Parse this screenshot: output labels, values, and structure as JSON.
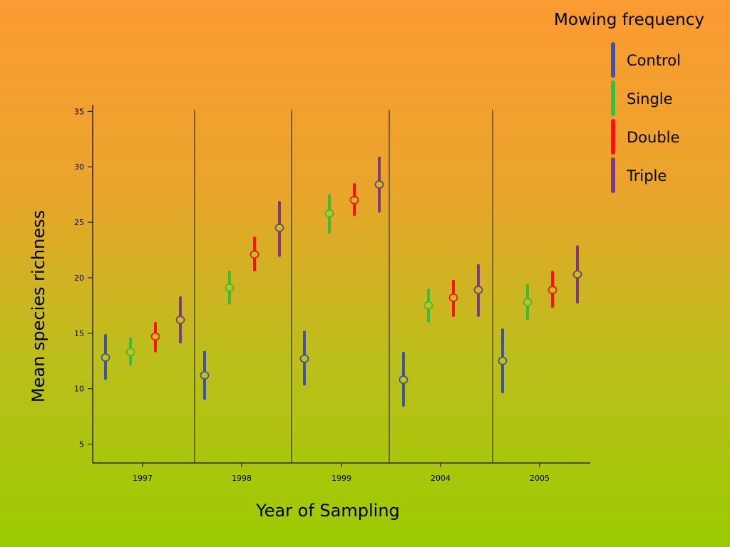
{
  "chart_data": {
    "type": "scatter",
    "subtype": "point-with-error-bars",
    "legend_title": "Mowing frequency",
    "legend_position": "top-right",
    "xlabel": "Year of Sampling",
    "ylabel": "Mean species richness",
    "categories": [
      "1997",
      "1998",
      "1999",
      "2004",
      "2005"
    ],
    "yticks": [
      5,
      10,
      15,
      20,
      25,
      30,
      35
    ],
    "ylim": [
      3.3,
      35.6
    ],
    "grid": false,
    "group_separators": true,
    "series": [
      {
        "name": "Control",
        "color": "#44549c",
        "values": [
          12.8,
          11.2,
          12.7,
          10.8,
          12.5
        ],
        "lower": [
          10.9,
          9.1,
          10.4,
          8.5,
          9.7
        ],
        "upper": [
          14.8,
          13.3,
          15.1,
          13.2,
          15.3
        ]
      },
      {
        "name": "Single",
        "color": "#3bbc3b",
        "values": [
          13.3,
          19.1,
          25.8,
          17.5,
          17.8
        ],
        "lower": [
          12.2,
          17.7,
          24.1,
          16.1,
          16.3
        ],
        "upper": [
          14.5,
          20.5,
          27.4,
          18.9,
          19.3
        ]
      },
      {
        "name": "Double",
        "color": "#ff0f0f",
        "values": [
          14.7,
          22.1,
          27.0,
          18.2,
          18.9
        ],
        "lower": [
          13.4,
          20.7,
          25.7,
          16.6,
          17.4
        ],
        "upper": [
          15.9,
          23.6,
          28.4,
          19.7,
          20.5
        ]
      },
      {
        "name": "Triple",
        "color": "#7e3a7a",
        "values": [
          16.2,
          24.5,
          28.4,
          18.9,
          20.3
        ],
        "lower": [
          14.2,
          22.0,
          26.0,
          16.6,
          17.8
        ],
        "upper": [
          18.2,
          26.8,
          30.8,
          21.1,
          22.8
        ]
      }
    ]
  }
}
